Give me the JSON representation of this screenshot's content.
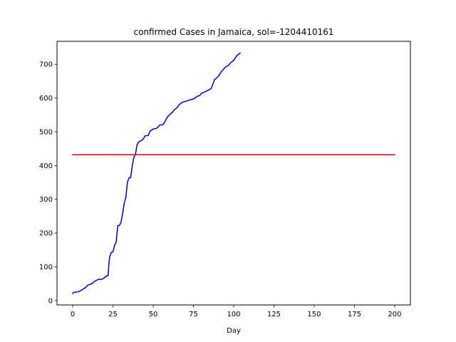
{
  "chart_data": {
    "type": "line",
    "title": "confirmed Cases in Jamaica, sol=-1204410161",
    "xlabel": "Day",
    "ylabel": "",
    "xlim": [
      -9.75,
      209.75
    ],
    "ylim": [
      -13,
      768
    ],
    "xticks": [
      0,
      25,
      50,
      75,
      100,
      125,
      150,
      175,
      200
    ],
    "yticks": [
      0,
      100,
      200,
      300,
      400,
      500,
      600,
      700
    ],
    "grid": false,
    "series": [
      {
        "name": "confirmed",
        "color": "#0000cc",
        "points": [
          [
            0,
            21
          ],
          [
            1,
            25
          ],
          [
            2,
            25
          ],
          [
            4,
            27
          ],
          [
            5,
            30
          ],
          [
            6,
            32
          ],
          [
            7,
            36
          ],
          [
            8,
            38
          ],
          [
            9,
            44
          ],
          [
            10,
            47
          ],
          [
            12,
            50
          ],
          [
            13,
            55
          ],
          [
            14,
            58
          ],
          [
            16,
            63
          ],
          [
            18,
            63
          ],
          [
            19,
            65
          ],
          [
            20,
            69
          ],
          [
            21,
            73
          ],
          [
            22,
            74
          ],
          [
            22.5,
            110
          ],
          [
            23,
            130
          ],
          [
            24,
            143
          ],
          [
            25,
            144
          ],
          [
            26,
            163
          ],
          [
            27,
            173
          ],
          [
            28,
            222
          ],
          [
            29,
            222
          ],
          [
            30,
            232
          ],
          [
            31,
            257
          ],
          [
            32,
            288
          ],
          [
            33,
            305
          ],
          [
            34,
            350
          ],
          [
            35,
            364
          ],
          [
            36,
            364
          ],
          [
            37,
            400
          ],
          [
            38,
            424
          ],
          [
            39,
            434
          ],
          [
            40,
            462
          ],
          [
            41,
            470
          ],
          [
            43,
            475
          ],
          [
            44,
            480
          ],
          [
            45,
            488
          ],
          [
            47,
            489
          ],
          [
            48,
            502
          ],
          [
            50,
            508
          ],
          [
            52,
            510
          ],
          [
            53,
            514
          ],
          [
            54,
            520
          ],
          [
            56,
            521
          ],
          [
            57,
            527
          ],
          [
            58,
            537
          ],
          [
            59,
            545
          ],
          [
            61,
            554
          ],
          [
            62,
            558
          ],
          [
            63,
            565
          ],
          [
            64,
            568
          ],
          [
            65,
            572
          ],
          [
            66,
            580
          ],
          [
            68,
            587
          ],
          [
            70,
            590
          ],
          [
            72,
            593
          ],
          [
            73,
            595
          ],
          [
            75,
            597
          ],
          [
            77,
            604
          ],
          [
            79,
            608
          ],
          [
            80,
            614
          ],
          [
            82,
            618
          ],
          [
            84,
            623
          ],
          [
            86,
            628
          ],
          [
            87,
            640
          ],
          [
            88,
            654
          ],
          [
            90,
            662
          ],
          [
            91,
            668
          ],
          [
            92,
            676
          ],
          [
            93,
            682
          ],
          [
            95,
            692
          ],
          [
            97,
            698
          ],
          [
            98,
            704
          ],
          [
            100,
            712
          ],
          [
            102,
            726
          ],
          [
            104,
            733
          ]
        ]
      },
      {
        "name": "sol",
        "color": "#dd0000",
        "points": [
          [
            0,
            432
          ],
          [
            200,
            432
          ]
        ]
      }
    ]
  }
}
